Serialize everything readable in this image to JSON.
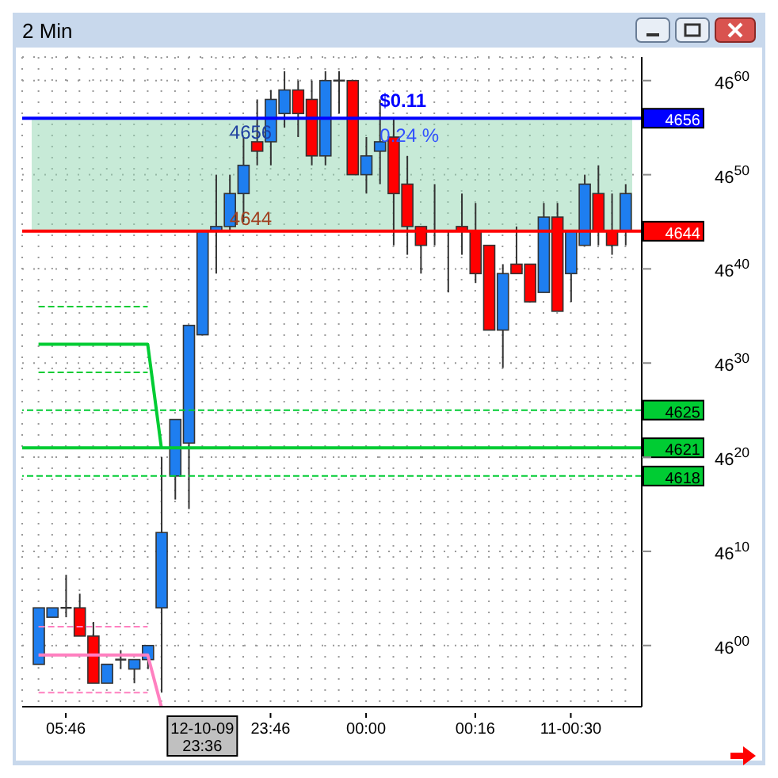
{
  "chart_data": {
    "type": "candlestick",
    "title": "2 Min",
    "categories": [
      null,
      null,
      "05:46",
      null,
      null,
      null,
      null,
      null,
      null,
      null,
      null,
      null,
      "12-10-09 23:36",
      null,
      null,
      null,
      null,
      "23:46",
      null,
      null,
      null,
      null,
      null,
      null,
      "00:00",
      null,
      null,
      null,
      null,
      null,
      null,
      null,
      "00:16",
      null,
      null,
      null,
      null,
      null,
      null,
      "11-00:30",
      null,
      null,
      null,
      null
    ],
    "ohlc": [
      [
        4598,
        4604,
        4598,
        4604
      ],
      [
        4603,
        4604,
        4603,
        4604
      ],
      [
        4604,
        4607.5,
        4603,
        4604
      ],
      [
        4604,
        4605.5,
        4601,
        4601
      ],
      [
        4601,
        4602.5,
        4596,
        4596
      ],
      [
        4596,
        4598,
        4596,
        4598
      ],
      [
        4598.5,
        4599.5,
        4597.5,
        4598.5
      ],
      [
        4597.5,
        4598.5,
        4596,
        4598.5
      ],
      [
        4598.5,
        4600,
        4597.5,
        4600
      ],
      [
        4604,
        4620,
        4595,
        4612
      ],
      [
        4618,
        4624,
        4615.5,
        4624
      ],
      [
        4621.5,
        4634,
        4614.5,
        4634
      ],
      [
        4633,
        4644,
        4633,
        4644
      ],
      [
        4644,
        4650,
        4639.5,
        4644.5
      ],
      [
        4644.5,
        4650,
        4644,
        4648
      ],
      [
        4648,
        4654,
        4645,
        4651
      ],
      [
        4653.5,
        4658,
        4651,
        4652.5
      ],
      [
        4653.5,
        4659,
        4651,
        4658
      ],
      [
        4656.5,
        4661,
        4655,
        4659
      ],
      [
        4659,
        4660,
        4654,
        4656.5
      ],
      [
        4658,
        4660,
        4651,
        4652
      ],
      [
        4652,
        4661,
        4651,
        4660
      ],
      [
        4660,
        4661,
        4656.5,
        4660
      ],
      [
        4660,
        4660,
        4650,
        4650
      ],
      [
        4650,
        4654,
        4648,
        4652
      ],
      [
        4652.5,
        4658,
        4649,
        4653.5
      ],
      [
        4654,
        4656,
        4642.5,
        4648
      ],
      [
        4649,
        4652,
        4641.5,
        4644.5
      ],
      [
        4644.5,
        4644.5,
        4639.5,
        4642.5
      ],
      [
        4644,
        4649,
        4642.5,
        4644
      ],
      [
        4644,
        4644,
        4637.5,
        4644
      ],
      [
        4644.5,
        4648,
        4641.5,
        4644
      ],
      [
        4644,
        4647,
        4638.5,
        4639.5
      ],
      [
        4642.5,
        4642.5,
        4633.5,
        4633.5
      ],
      [
        4633.5,
        4640.5,
        4629.5,
        4639.5
      ],
      [
        4640.5,
        4644.5,
        4639.5,
        4639.5
      ],
      [
        4640.5,
        4640.5,
        4636.5,
        4636.5
      ],
      [
        4637.5,
        4647,
        4637.5,
        4645.5
      ],
      [
        4645.5,
        4647,
        4635.5,
        4635.5
      ],
      [
        4639.5,
        4644,
        4636.5,
        4644
      ],
      [
        4642.5,
        4650,
        4642.5,
        4649
      ],
      [
        4648,
        4651,
        4642.5,
        4644
      ],
      [
        4644,
        4648,
        4641.5,
        4642.5
      ],
      [
        4644,
        4649,
        4642.5,
        4648
      ]
    ],
    "colors": [
      "#1e7ef0",
      "#1e7ef0",
      "#333333",
      "#ff0000",
      "#ff0000",
      "#1e7ef0",
      "#333333",
      "#1e7ef0",
      "#1e7ef0",
      "#1e7ef0",
      "#1e7ef0",
      "#1e7ef0",
      "#1e7ef0",
      "#1e7ef0",
      "#1e7ef0",
      "#1e7ef0",
      "#ff0000",
      "#1e7ef0",
      "#1e7ef0",
      "#ff0000",
      "#ff0000",
      "#1e7ef0",
      "#333333",
      "#ff0000",
      "#1e7ef0",
      "#1e7ef0",
      "#ff0000",
      "#ff0000",
      "#ff0000",
      "#333333",
      "#333333",
      "#ff0000",
      "#ff0000",
      "#ff0000",
      "#1e7ef0",
      "#ff0000",
      "#ff0000",
      "#1e7ef0",
      "#ff0000",
      "#1e7ef0",
      "#1e7ef0",
      "#ff0000",
      "#ff0000",
      "#1e7ef0"
    ],
    "series": [
      {
        "type": "line",
        "color": "#00cc33",
        "line_style": "solid",
        "values": [
          4632,
          4632,
          4632,
          4632,
          4632,
          4632,
          4632,
          4632,
          4632,
          4621,
          null,
          null,
          null,
          null,
          null,
          null,
          null,
          null,
          null,
          null,
          null,
          null,
          null,
          null,
          null,
          null,
          null,
          null,
          null,
          null,
          null,
          null,
          null,
          null,
          null,
          null,
          null,
          null,
          null,
          null,
          null,
          null,
          null,
          null
        ]
      },
      {
        "type": "line",
        "color": "#00cc33",
        "line_style": "dashed",
        "values": [
          4636,
          4636,
          4636,
          4636,
          4636,
          4636,
          4636,
          4636,
          4636,
          null,
          null,
          null,
          null,
          null,
          null,
          null,
          null,
          null,
          null,
          null,
          null,
          null,
          null,
          null,
          null,
          null,
          null,
          null,
          null,
          null,
          null,
          null,
          null,
          null,
          null,
          null,
          null,
          null,
          null,
          null,
          null,
          null,
          null,
          null
        ]
      },
      {
        "type": "line",
        "color": "#00cc33",
        "line_style": "dashed",
        "values": [
          4629,
          4629,
          4629,
          4629,
          4629,
          4629,
          4629,
          4629,
          4629,
          null,
          null,
          null,
          null,
          null,
          null,
          null,
          null,
          null,
          null,
          null,
          null,
          null,
          null,
          null,
          null,
          null,
          null,
          null,
          null,
          null,
          null,
          null,
          null,
          null,
          null,
          null,
          null,
          null,
          null,
          null,
          null,
          null,
          null,
          null
        ]
      },
      {
        "type": "line",
        "color": "#ff80c0",
        "line_style": "solid",
        "values": [
          4599,
          4599,
          4599,
          4599,
          4599,
          4599,
          4599,
          4599,
          4599,
          4593.5,
          null,
          null,
          null,
          null,
          null,
          null,
          null,
          null,
          null,
          null,
          null,
          null,
          null,
          null,
          null,
          null,
          null,
          null,
          null,
          null,
          null,
          null,
          null,
          null,
          null,
          null,
          null,
          null,
          null,
          null,
          null,
          null,
          null,
          null
        ]
      },
      {
        "type": "line",
        "color": "#ff80c0",
        "line_style": "dashed",
        "values": [
          4602,
          4602,
          4602,
          4602,
          4602,
          4602,
          4602,
          4602,
          4602,
          null,
          null,
          null,
          null,
          null,
          null,
          null,
          null,
          null,
          null,
          null,
          null,
          null,
          null,
          null,
          null,
          null,
          null,
          null,
          null,
          null,
          null,
          null,
          null,
          null,
          null,
          null,
          null,
          null,
          null,
          null,
          null,
          null,
          null,
          null
        ]
      },
      {
        "type": "line",
        "color": "#ff80c0",
        "line_style": "dashed",
        "values": [
          4595,
          4595,
          4595,
          4595,
          4595,
          4595,
          4595,
          4595,
          4595,
          null,
          null,
          null,
          null,
          null,
          null,
          null,
          null,
          null,
          null,
          null,
          null,
          null,
          null,
          null,
          null,
          null,
          null,
          null,
          null,
          null,
          null,
          null,
          null,
          null,
          null,
          null,
          null,
          null,
          null,
          null,
          null,
          null,
          null,
          null
        ]
      }
    ],
    "ylim": [
      4593.5,
      4662.5
    ],
    "yticks": [
      4600,
      4610,
      4620,
      4630,
      4640,
      4650,
      4660
    ],
    "grid": true,
    "ref_lines": [
      {
        "axis": "y",
        "value": 4656,
        "label": "4656",
        "color": "#0000ff",
        "line_style": "solid"
      },
      {
        "axis": "y",
        "value": 4644,
        "label": "4644",
        "color": "#ff0000",
        "line_style": "solid"
      },
      {
        "axis": "y",
        "value": 4625,
        "label": "4625",
        "color": "#00cc33",
        "line_style": "dashed"
      },
      {
        "axis": "y",
        "value": 4621,
        "label": "4621",
        "color": "#00cc33",
        "line_style": "solid"
      },
      {
        "axis": "y",
        "value": 4618,
        "label": "4618",
        "color": "#00cc33",
        "line_style": "dashed"
      }
    ],
    "bands": [
      {
        "axis": "y",
        "from": 4644,
        "to": 4656,
        "color": "#8fd6b0"
      }
    ],
    "annotations": [
      {
        "text": "$0.11",
        "y": 4656
      },
      {
        "text": "0.24 %",
        "y": 4656
      },
      {
        "text": "4656",
        "y": 4656
      },
      {
        "text": "4644",
        "y": 4644
      }
    ]
  }
}
